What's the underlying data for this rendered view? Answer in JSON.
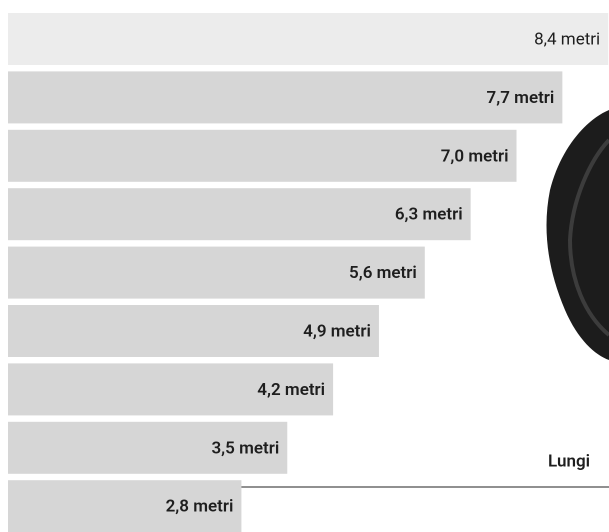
{
  "chart_data": {
    "type": "bar",
    "orientation": "horizontal",
    "values": [
      8.4,
      7.7,
      7.0,
      6.3,
      5.6,
      4.9,
      4.2,
      3.5,
      2.8
    ],
    "value_labels": [
      "8,4 metri",
      "7,7 metri",
      "7,0 metri",
      "6,3 metri",
      "5,6 metri",
      "4,9 metri",
      "4,2 metri",
      "3,5 metri",
      "2,8 metri"
    ],
    "color": "#d6d6d6",
    "highlight_color": "#ececec",
    "annotation": "Lungi"
  }
}
